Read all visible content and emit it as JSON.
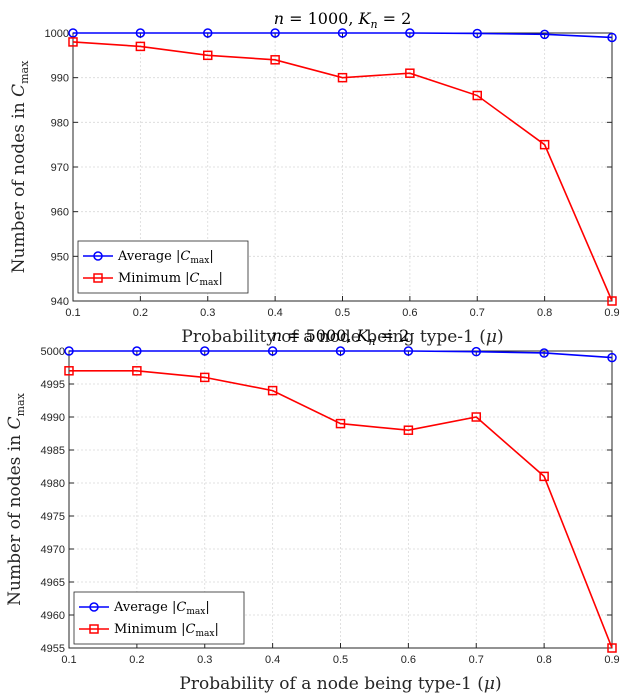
{
  "chart_data": [
    {
      "type": "line",
      "title": "n = 1000, K_n = 2",
      "title_parts": {
        "var": "n",
        "eq1": " = 1000, ",
        "var2": "K",
        "sub": "n",
        "eq2": " = 2"
      },
      "xlabel": "Probability of a node being type-1 (μ)",
      "ylabel": "Number of nodes in C_max",
      "xlim": [
        0.1,
        0.9
      ],
      "ylim": [
        940,
        1000
      ],
      "xticks": [
        "0.1",
        "0.2",
        "0.3",
        "0.4",
        "0.5",
        "0.6",
        "0.7",
        "0.8",
        "0.9"
      ],
      "yticks": [
        "940",
        "950",
        "960",
        "970",
        "980",
        "990",
        "1000"
      ],
      "grid": true,
      "legend_position": "bottom-left",
      "x": [
        0.1,
        0.2,
        0.3,
        0.4,
        0.5,
        0.6,
        0.7,
        0.8,
        0.9
      ],
      "series": [
        {
          "name": "Average |C_max|",
          "color": "#0000ff",
          "marker": "circle",
          "values": [
            1000,
            1000,
            1000,
            1000,
            1000,
            1000,
            999.9,
            999.7,
            999
          ]
        },
        {
          "name": "Minimum |C_max|",
          "color": "#ff0000",
          "marker": "square",
          "values": [
            998,
            997,
            995,
            994,
            990,
            991,
            986,
            975,
            940
          ]
        }
      ]
    },
    {
      "type": "line",
      "title": "n = 5000, K_n = 2",
      "title_parts": {
        "var": "n",
        "eq1": " = 5000, ",
        "var2": "K",
        "sub": "n",
        "eq2": " = 2"
      },
      "xlabel": "Probability of a node being type-1 (μ)",
      "ylabel": "Number of nodes in C_max",
      "xlim": [
        0.1,
        0.9
      ],
      "ylim": [
        4955,
        5000
      ],
      "xticks": [
        "0.1",
        "0.2",
        "0.3",
        "0.4",
        "0.5",
        "0.6",
        "0.7",
        "0.8",
        "0.9"
      ],
      "yticks": [
        "4955",
        "4960",
        "4965",
        "4970",
        "4975",
        "4980",
        "4985",
        "4990",
        "4995",
        "5000"
      ],
      "grid": true,
      "legend_position": "bottom-left",
      "x": [
        0.1,
        0.2,
        0.3,
        0.4,
        0.5,
        0.6,
        0.7,
        0.8,
        0.9
      ],
      "series": [
        {
          "name": "Average |C_max|",
          "color": "#0000ff",
          "marker": "circle",
          "values": [
            5000,
            5000,
            5000,
            5000,
            5000,
            5000,
            4999.9,
            4999.7,
            4999
          ]
        },
        {
          "name": "Minimum |C_max|",
          "color": "#ff0000",
          "marker": "square",
          "values": [
            4997,
            4997,
            4996,
            4994,
            4989,
            4988,
            4990,
            4981,
            4955
          ]
        }
      ]
    }
  ]
}
